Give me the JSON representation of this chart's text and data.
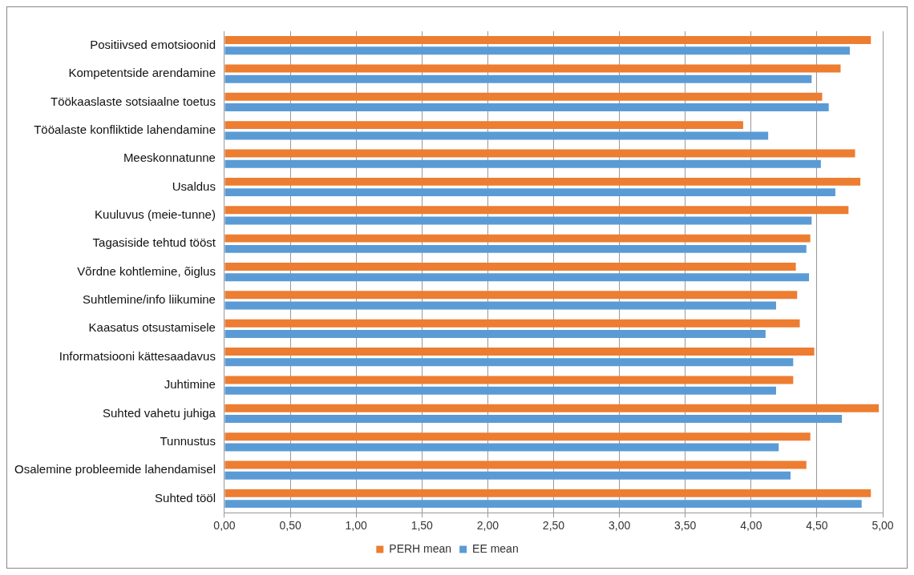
{
  "chart_data": {
    "type": "bar",
    "orientation": "horizontal",
    "categories": [
      "Positiivsed emotsioonid",
      "Kompetentside arendamine",
      "Töökaaslaste sotsiaalne toetus",
      "Tööalaste konfliktide lahendamine",
      "Meeskonnatunne",
      "Usaldus",
      "Kuuluvus (meie-tunne)",
      "Tagasiside tehtud tööst",
      "Võrdne kohtlemine, õiglus",
      "Suhtlemine/info liikumine",
      "Kaasatus otsustamisele",
      "Informatsiooni kättesaadavus",
      "Juhtimine",
      "Suhted vahetu juhiga",
      "Tunnustus",
      "Osalemine probleemide lahendamisel",
      "Suhted tööl"
    ],
    "series": [
      {
        "name": "PERH mean",
        "color": "#ed7d31",
        "values": [
          4.91,
          4.68,
          4.54,
          3.94,
          4.79,
          4.83,
          4.74,
          4.45,
          4.34,
          4.35,
          4.37,
          4.48,
          4.32,
          4.97,
          4.45,
          4.42,
          4.91
        ]
      },
      {
        "name": "EE mean",
        "color": "#5b9bd5",
        "values": [
          4.75,
          4.46,
          4.59,
          4.13,
          4.53,
          4.64,
          4.46,
          4.42,
          4.44,
          4.19,
          4.11,
          4.32,
          4.19,
          4.69,
          4.21,
          4.3,
          4.84
        ]
      }
    ],
    "xlim": [
      0,
      5
    ],
    "xticks": [
      {
        "value": 0,
        "label": "0,00"
      },
      {
        "value": 0.5,
        "label": "0,50"
      },
      {
        "value": 1,
        "label": "1,00"
      },
      {
        "value": 1.5,
        "label": "1,50"
      },
      {
        "value": 2,
        "label": "2,00"
      },
      {
        "value": 2.5,
        "label": "2,50"
      },
      {
        "value": 3,
        "label": "3,00"
      },
      {
        "value": 3.5,
        "label": "3,50"
      },
      {
        "value": 4,
        "label": "4,00"
      },
      {
        "value": 4.5,
        "label": "4,50"
      },
      {
        "value": 5,
        "label": "5,00"
      }
    ],
    "grid": "x",
    "legend": "bottom"
  }
}
